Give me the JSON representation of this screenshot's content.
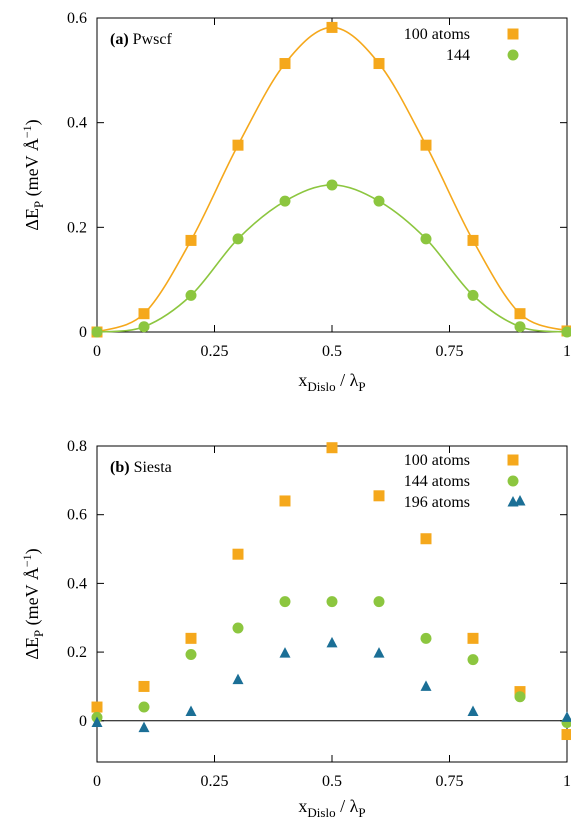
{
  "chart_data": [
    {
      "type": "scatter",
      "panel_label": "(a)",
      "panel_name": "Pwscf",
      "xlabel": "x_Dislo / λ_P",
      "xlabel_main": "x",
      "xlabel_sub": "Dislo",
      "xlabel_sep": " / λ",
      "xlabel_sub2": "P",
      "ylabel_main": "ΔE",
      "ylabel_sub": "P",
      "ylabel_unit": " (meV Å",
      "ylabel_sup": "−1",
      "ylabel_close": ")",
      "xlim": [
        0,
        1
      ],
      "ylim": [
        0,
        0.6
      ],
      "x_ticks": [
        "0",
        "0.25",
        "0.5",
        "0.75",
        "1"
      ],
      "y_ticks": [
        "0",
        "0.2",
        "0.4",
        "0.6"
      ],
      "grid": false,
      "legend_position": "top-right",
      "fit_lines": true,
      "series": [
        {
          "name": "100 atoms",
          "marker": "square",
          "color": "#f5a81c",
          "x": [
            0,
            0.1,
            0.2,
            0.3,
            0.4,
            0.5,
            0.6,
            0.7,
            0.8,
            0.9,
            1.0
          ],
          "values": [
            0.0,
            0.035,
            0.175,
            0.357,
            0.513,
            0.582,
            0.513,
            0.357,
            0.175,
            0.035,
            0.002
          ]
        },
        {
          "name": "144",
          "marker": "circle",
          "color": "#8cc63f",
          "x": [
            0,
            0.1,
            0.2,
            0.3,
            0.4,
            0.5,
            0.6,
            0.7,
            0.8,
            0.9,
            1.0
          ],
          "values": [
            0.0,
            0.01,
            0.07,
            0.178,
            0.25,
            0.281,
            0.25,
            0.178,
            0.07,
            0.01,
            0.0
          ]
        }
      ]
    },
    {
      "type": "scatter",
      "panel_label": "(b)",
      "panel_name": "Siesta",
      "xlabel": "x_Dislo / λ_P",
      "xlabel_main": "x",
      "xlabel_sub": "Dislo",
      "xlabel_sep": " / λ",
      "xlabel_sub2": "P",
      "ylabel_main": "ΔE",
      "ylabel_sub": "P",
      "ylabel_unit": " (meV Å",
      "ylabel_sup": "−1",
      "ylabel_close": ")",
      "xlim": [
        0,
        1
      ],
      "ylim": [
        -0.12,
        0.8
      ],
      "x_ticks": [
        "0",
        "0.25",
        "0.5",
        "0.75",
        "1"
      ],
      "y_ticks": [
        "0",
        "0.2",
        "0.4",
        "0.6",
        "0.8"
      ],
      "grid": false,
      "legend_position": "top-right",
      "zero_line": true,
      "series": [
        {
          "name": "100 atoms",
          "marker": "square",
          "color": "#f5a81c",
          "x": [
            0,
            0.1,
            0.2,
            0.3,
            0.4,
            0.5,
            0.6,
            0.7,
            0.8,
            0.9,
            1.0
          ],
          "values": [
            0.04,
            0.1,
            0.24,
            0.485,
            0.64,
            0.795,
            0.655,
            0.53,
            0.24,
            0.085,
            -0.04
          ]
        },
        {
          "name": "144 atoms",
          "marker": "circle",
          "color": "#8cc63f",
          "x": [
            0,
            0.1,
            0.2,
            0.3,
            0.4,
            0.5,
            0.6,
            0.7,
            0.8,
            0.9,
            1.0
          ],
          "values": [
            0.01,
            0.04,
            0.193,
            0.27,
            0.347,
            0.347,
            0.347,
            0.24,
            0.178,
            0.07,
            -0.005
          ]
        },
        {
          "name": "196 atoms",
          "marker": "triangle",
          "color": "#1b6f96",
          "x": [
            0,
            0.1,
            0.2,
            0.3,
            0.4,
            0.5,
            0.6,
            0.7,
            0.8,
            0.9,
            1.0
          ],
          "values": [
            -0.005,
            -0.02,
            0.027,
            0.12,
            0.197,
            0.227,
            0.197,
            0.1,
            0.027,
            0.64,
            0.01
          ]
        }
      ]
    }
  ]
}
